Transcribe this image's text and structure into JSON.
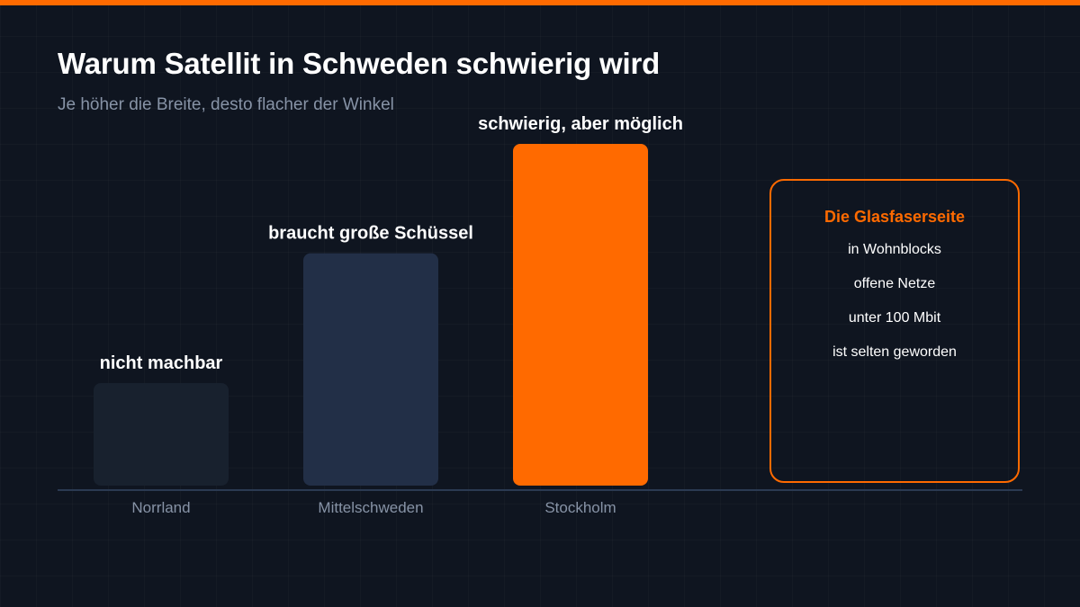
{
  "header": {
    "title": "Warum Satellit in Schweden schwierig wird",
    "subtitle": "Je höher die Breite, desto flacher der Winkel"
  },
  "colors": {
    "accent": "#ff6a00",
    "background": "#0f1520",
    "axis": "#2b3a52"
  },
  "chart_data": {
    "type": "bar",
    "title": "Warum Satellit in Schweden schwierig wird",
    "subtitle": "Je höher die Breite, desto flacher der Winkel",
    "categories": [
      "Norrland",
      "Mittelschweden",
      "Stockholm"
    ],
    "values": [
      30,
      68,
      100
    ],
    "value_note": "relative bar heights, no numeric axis printed",
    "bar_labels": [
      "nicht machbar",
      "braucht große Schüssel",
      "schwierig, aber möglich"
    ],
    "bar_colors": [
      "#18212e",
      "#222f47",
      "#ff6a00"
    ],
    "ylim": [
      0,
      100
    ],
    "xlabel": "",
    "ylabel": "",
    "grid": false,
    "legend": "none"
  },
  "info_box": {
    "title": "Die Glasfaserseite",
    "lines": [
      "in Wohnblocks",
      "offene Netze",
      "unter 100 Mbit",
      "ist selten geworden"
    ]
  }
}
